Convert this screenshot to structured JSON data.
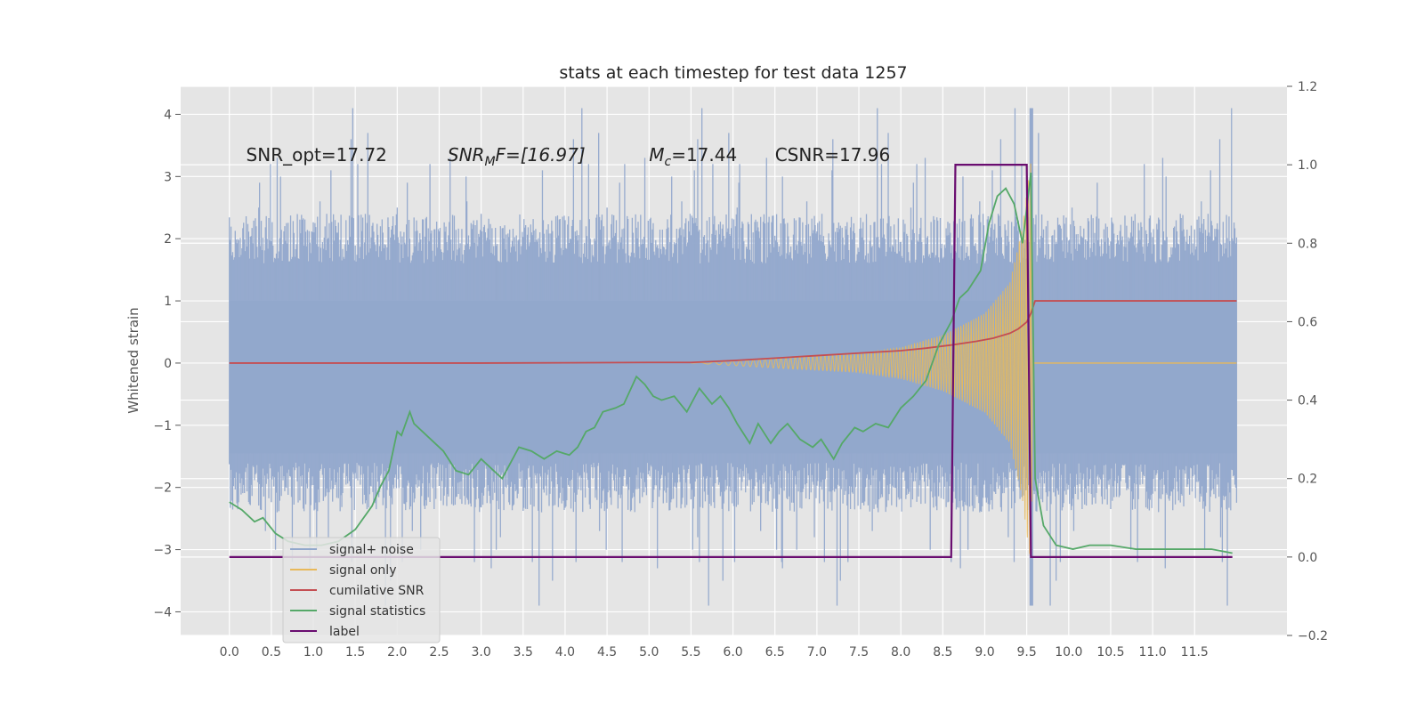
{
  "chart_data": {
    "type": "line",
    "title": "stats at each timestep for test data 1257",
    "ylabel": "Whitened strain",
    "xlim": [
      -0.58,
      12.6
    ],
    "ylim": [
      -4.38,
      4.45
    ],
    "y2lim": [
      -0.2,
      1.2
    ],
    "x_ticks": [
      0.0,
      0.5,
      1.0,
      1.5,
      2.0,
      2.5,
      3.0,
      3.5,
      4.0,
      4.5,
      5.0,
      5.5,
      6.0,
      6.5,
      7.0,
      7.5,
      8.0,
      8.5,
      9.0,
      9.5,
      10.0,
      10.5,
      11.0,
      11.5
    ],
    "x_tick_labels": [
      "0.0",
      "0.5",
      "1.0",
      "1.5",
      "2.0",
      "2.5",
      "3.0",
      "3.5",
      "4.0",
      "4.5",
      "5.0",
      "5.5",
      "6.0",
      "6.5",
      "7.0",
      "7.5",
      "8.0",
      "8.5",
      "9.0",
      "9.5",
      "10.0",
      "10.5",
      "11.0",
      "11.5"
    ],
    "y_ticks": [
      -4,
      -3,
      -2,
      -1,
      0,
      1,
      2,
      3,
      4
    ],
    "y_tick_labels": [
      "−4",
      "−3",
      "−2",
      "−1",
      "0",
      "1",
      "2",
      "3",
      "4"
    ],
    "y2_ticks": [
      -0.2,
      0.0,
      0.2,
      0.4,
      0.6,
      0.8,
      1.0,
      1.2
    ],
    "y2_tick_labels": [
      "−0.2",
      "0.0",
      "0.2",
      "0.4",
      "0.6",
      "0.8",
      "1.0",
      "1.2"
    ],
    "grid": true,
    "legend_position": "lower-left",
    "annotations": [
      {
        "text": "SNR_opt=17.72",
        "x": 0.2,
        "y": 3.35
      },
      {
        "text": "SNR",
        "sub": "M",
        "suffix": "F=[16.97]",
        "italic": true,
        "x": 2.6,
        "y": 3.35
      },
      {
        "text": "M",
        "sub": "c",
        "suffix": "=17.44",
        "italic": true,
        "x": 5.0,
        "y": 3.35
      },
      {
        "text": "CSNR=17.96",
        "x": 6.5,
        "y": 3.35
      }
    ],
    "noise_envelope": {
      "x_start": 0.0,
      "x_end": 12.0,
      "peak_x": 9.55,
      "upper_base": 1.6,
      "lower_base": -1.6,
      "upper_spikes": [
        2.2,
        2.5,
        2.9,
        3.2,
        3.3,
        3.0,
        2.6,
        2.4,
        3.1,
        3.6,
        4.1,
        3.2,
        3.7
      ],
      "lower_spikes": [
        -2.7,
        -3.0,
        -3.2,
        -3.3,
        -3.0,
        -2.8,
        -3.2,
        -3.9,
        -3.5,
        -3.2
      ]
    },
    "series": [
      {
        "name": "signal+ noise",
        "axis": "left",
        "color": "#92a8cc",
        "style": "band"
      },
      {
        "name": "signal only",
        "axis": "left",
        "color": "#e8b95a",
        "style": "chirp",
        "start_x": 5.5,
        "merge_x": 9.58,
        "amplitude_points": [
          [
            5.5,
            0.0
          ],
          [
            6.5,
            0.08
          ],
          [
            7.5,
            0.15
          ],
          [
            8.0,
            0.25
          ],
          [
            8.5,
            0.45
          ],
          [
            9.0,
            0.8
          ],
          [
            9.3,
            1.3
          ],
          [
            9.45,
            2.2
          ],
          [
            9.55,
            3.3
          ],
          [
            9.58,
            0.0
          ]
        ]
      },
      {
        "name": "cumilative SNR",
        "axis": "left",
        "color": "#c44e52",
        "x": [
          0.0,
          1.0,
          2.0,
          3.0,
          4.0,
          5.0,
          5.5,
          6.0,
          6.5,
          7.0,
          7.5,
          8.0,
          8.3,
          8.6,
          8.9,
          9.1,
          9.3,
          9.4,
          9.5,
          9.55,
          9.6,
          12.0
        ],
        "y": [
          0.0,
          0.0,
          0.0,
          0.0,
          0.005,
          0.01,
          0.01,
          0.04,
          0.08,
          0.12,
          0.16,
          0.2,
          0.24,
          0.29,
          0.35,
          0.4,
          0.48,
          0.55,
          0.66,
          0.8,
          1.0,
          1.0
        ]
      },
      {
        "name": "signal statistics",
        "axis": "right",
        "color": "#55a868",
        "x": [
          0.0,
          0.15,
          0.3,
          0.4,
          0.55,
          0.7,
          0.9,
          1.1,
          1.3,
          1.5,
          1.7,
          1.8,
          1.9,
          2.0,
          2.05,
          2.15,
          2.2,
          2.3,
          2.45,
          2.55,
          2.7,
          2.85,
          3.0,
          3.1,
          3.25,
          3.45,
          3.6,
          3.75,
          3.9,
          4.05,
          4.15,
          4.25,
          4.35,
          4.45,
          4.6,
          4.7,
          4.85,
          4.95,
          5.05,
          5.15,
          5.3,
          5.45,
          5.6,
          5.75,
          5.85,
          5.95,
          6.05,
          6.2,
          6.3,
          6.45,
          6.55,
          6.65,
          6.8,
          6.95,
          7.05,
          7.2,
          7.3,
          7.45,
          7.55,
          7.7,
          7.85,
          8.0,
          8.15,
          8.3,
          8.45,
          8.6,
          8.7,
          8.8,
          8.95,
          9.05,
          9.15,
          9.25,
          9.35,
          9.45,
          9.55,
          9.6,
          9.7,
          9.85,
          10.05,
          10.25,
          10.5,
          10.8,
          11.1,
          11.4,
          11.7,
          11.95
        ],
        "y": [
          0.14,
          0.12,
          0.09,
          0.1,
          0.06,
          0.04,
          0.03,
          0.03,
          0.04,
          0.07,
          0.13,
          0.18,
          0.22,
          0.32,
          0.31,
          0.37,
          0.34,
          0.32,
          0.29,
          0.27,
          0.22,
          0.21,
          0.25,
          0.23,
          0.2,
          0.28,
          0.27,
          0.25,
          0.27,
          0.26,
          0.28,
          0.32,
          0.33,
          0.37,
          0.38,
          0.39,
          0.46,
          0.44,
          0.41,
          0.4,
          0.41,
          0.37,
          0.43,
          0.39,
          0.41,
          0.38,
          0.34,
          0.29,
          0.34,
          0.29,
          0.32,
          0.34,
          0.3,
          0.28,
          0.3,
          0.25,
          0.29,
          0.33,
          0.32,
          0.34,
          0.33,
          0.38,
          0.41,
          0.45,
          0.54,
          0.6,
          0.66,
          0.68,
          0.73,
          0.85,
          0.92,
          0.94,
          0.9,
          0.8,
          0.98,
          0.2,
          0.08,
          0.03,
          0.02,
          0.03,
          0.03,
          0.02,
          0.02,
          0.02,
          0.02,
          0.01
        ]
      },
      {
        "name": "label",
        "axis": "right",
        "color": "#6a0d70",
        "x": [
          0.0,
          8.6,
          8.65,
          9.5,
          9.55,
          11.95
        ],
        "y": [
          0.0,
          0.0,
          1.0,
          1.0,
          0.0,
          0.0
        ]
      }
    ]
  }
}
